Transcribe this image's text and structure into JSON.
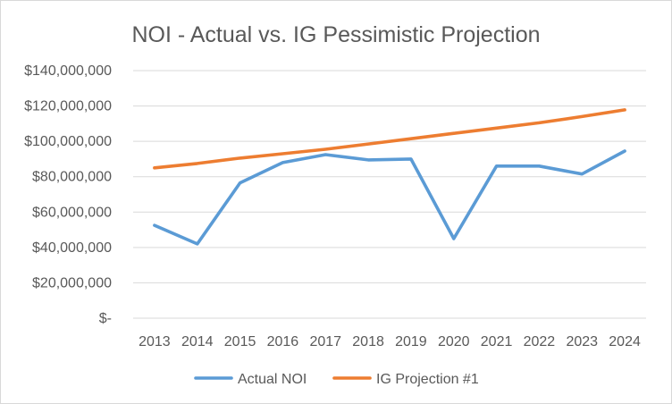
{
  "chart_data": {
    "type": "line",
    "title": "NOI - Actual vs. IG Pessimistic Projection",
    "xlabel": "",
    "ylabel": "",
    "categories": [
      "2013",
      "2014",
      "2015",
      "2016",
      "2017",
      "2018",
      "2019",
      "2020",
      "2021",
      "2022",
      "2023",
      "2024"
    ],
    "ylim": [
      0,
      140000000
    ],
    "y_ticks": [
      0,
      20000000,
      40000000,
      60000000,
      80000000,
      100000000,
      120000000,
      140000000
    ],
    "y_tick_labels": [
      "$-",
      "$20,000,000",
      "$40,000,000",
      "$60,000,000",
      "$80,000,000",
      "$100,000,000",
      "$120,000,000",
      "$140,000,000"
    ],
    "grid": true,
    "legend_position": "bottom",
    "series": [
      {
        "name": "Actual NOI",
        "color": "#5b9bd5",
        "values": [
          52500000,
          42000000,
          76500000,
          88000000,
          92500000,
          89500000,
          90000000,
          45000000,
          86000000,
          86000000,
          81500000,
          94500000
        ]
      },
      {
        "name": "IG Projection #1",
        "color": "#ed7d31",
        "values": [
          85000000,
          87500000,
          90500000,
          93000000,
          95500000,
          98500000,
          101500000,
          104500000,
          107500000,
          110500000,
          114000000,
          117800000
        ]
      }
    ]
  }
}
